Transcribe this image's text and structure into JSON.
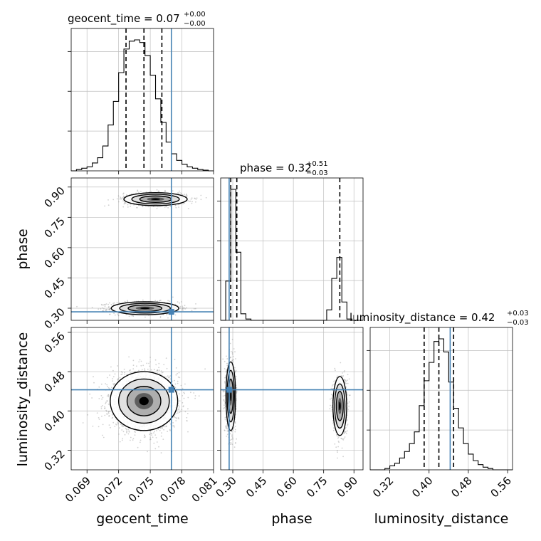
{
  "chart_data": {
    "type": "corner",
    "parameters": [
      "geocent_time",
      "phase",
      "luminosity_distance"
    ],
    "truths": {
      "geocent_time": 0.077,
      "phase": 0.282,
      "luminosity_distance": 0.443
    },
    "colors": {
      "hist": "#000000",
      "truth": "#4682b4",
      "grid": "#bfbfbf",
      "points": "#9a9a9a"
    },
    "grid": true,
    "panels": {
      "geocent_time": {
        "title_main": "geocent_time = 0.07",
        "title_sup": "+0.00",
        "title_sub": "−0.00",
        "xlabel": "geocent_time",
        "xlim": [
          0.0675,
          0.081
        ],
        "xticks": [
          "0.069",
          "0.072",
          "0.075",
          "0.078",
          "0.081"
        ],
        "tick_values": [
          0.069,
          0.072,
          0.075,
          0.078,
          0.081
        ],
        "quantiles": [
          0.0727,
          0.0744,
          0.0761
        ],
        "bins": [
          0.0675,
          0.068,
          0.0685,
          0.069,
          0.0695,
          0.07,
          0.0705,
          0.071,
          0.0715,
          0.072,
          0.0725,
          0.073,
          0.0735,
          0.074,
          0.0745,
          0.075,
          0.0755,
          0.076,
          0.0765,
          0.077,
          0.0775,
          0.078,
          0.0785,
          0.079,
          0.0795,
          0.08,
          0.0805,
          0.081
        ],
        "counts": [
          0,
          0.01,
          0.02,
          0.03,
          0.06,
          0.1,
          0.19,
          0.35,
          0.53,
          0.75,
          0.93,
          0.99,
          1.0,
          0.98,
          0.88,
          0.73,
          0.55,
          0.37,
          0.22,
          0.13,
          0.08,
          0.05,
          0.03,
          0.02,
          0.01,
          0.005,
          0
        ]
      },
      "phase": {
        "title_main": "phase = 0.32",
        "title_sup": "+0.51",
        "title_sub": "−0.03",
        "xlabel": "phase",
        "ylabel": "phase",
        "xlim": [
          0.24,
          0.945
        ],
        "xticks": [
          "0.30",
          "0.45",
          "0.60",
          "0.75",
          "0.90"
        ],
        "yticks": [
          "0.30",
          "0.45",
          "0.60",
          "0.75",
          "0.90"
        ],
        "tick_values": [
          0.3,
          0.45,
          0.6,
          0.75,
          0.9
        ],
        "quantiles": [
          0.29,
          0.32,
          0.83
        ],
        "bins": [
          0.24,
          0.265,
          0.29,
          0.315,
          0.34,
          0.365,
          0.39,
          0.415,
          0.44,
          0.465,
          0.49,
          0.515,
          0.54,
          0.565,
          0.59,
          0.615,
          0.64,
          0.665,
          0.69,
          0.715,
          0.74,
          0.765,
          0.79,
          0.815,
          0.84,
          0.865,
          0.89,
          0.915,
          0.945
        ],
        "counts": [
          0,
          0.3,
          1.0,
          0.52,
          0.05,
          0.01,
          0,
          0,
          0,
          0,
          0,
          0,
          0,
          0,
          0,
          0,
          0,
          0,
          0,
          0,
          0,
          0.08,
          0.32,
          0.48,
          0.14,
          0.01,
          0,
          0
        ]
      },
      "luminosity_distance": {
        "title_main": "luminosity_distance = 0.42",
        "title_sup": "+0.03",
        "title_sub": "−0.03",
        "xlabel": "luminosity_distance",
        "ylabel": "luminosity_distance",
        "xlim": [
          0.28,
          0.57
        ],
        "xticks": [
          "0.32",
          "0.40",
          "0.48",
          "0.56"
        ],
        "yticks": [
          "0.32",
          "0.40",
          "0.48",
          "0.56"
        ],
        "tick_values": [
          0.32,
          0.4,
          0.48,
          0.56
        ],
        "quantiles": [
          0.39,
          0.42,
          0.45
        ],
        "bins": [
          0.28,
          0.29,
          0.3,
          0.31,
          0.32,
          0.33,
          0.34,
          0.35,
          0.36,
          0.37,
          0.38,
          0.39,
          0.4,
          0.41,
          0.42,
          0.43,
          0.44,
          0.45,
          0.46,
          0.47,
          0.48,
          0.49,
          0.5,
          0.51,
          0.52,
          0.53,
          0.54,
          0.55,
          0.56,
          0.57
        ],
        "counts": [
          0,
          0,
          0,
          0.01,
          0.03,
          0.05,
          0.09,
          0.14,
          0.2,
          0.29,
          0.49,
          0.68,
          0.82,
          0.98,
          1.0,
          0.9,
          0.67,
          0.47,
          0.32,
          0.2,
          0.12,
          0.07,
          0.04,
          0.02,
          0.01,
          0,
          0,
          0,
          0
        ]
      }
    },
    "clusters_2d": {
      "phase_vs_geocent_time": [
        {
          "cx": 0.0745,
          "cy": 0.3,
          "sx": 0.0016,
          "sy": 0.016,
          "n": 1100
        },
        {
          "cx": 0.0755,
          "cy": 0.84,
          "sx": 0.0015,
          "sy": 0.016,
          "n": 900
        }
      ],
      "luminosity_distance_vs_geocent_time": [
        {
          "cx": 0.0744,
          "cy": 0.42,
          "sx": 0.0016,
          "sy": 0.03,
          "n": 2000
        }
      ],
      "luminosity_distance_vs_phase": [
        {
          "cx": 0.29,
          "cy": 0.43,
          "sx": 0.012,
          "sy": 0.035,
          "n": 1100
        },
        {
          "cx": 0.83,
          "cy": 0.41,
          "sx": 0.017,
          "sy": 0.03,
          "n": 900
        }
      ]
    }
  }
}
